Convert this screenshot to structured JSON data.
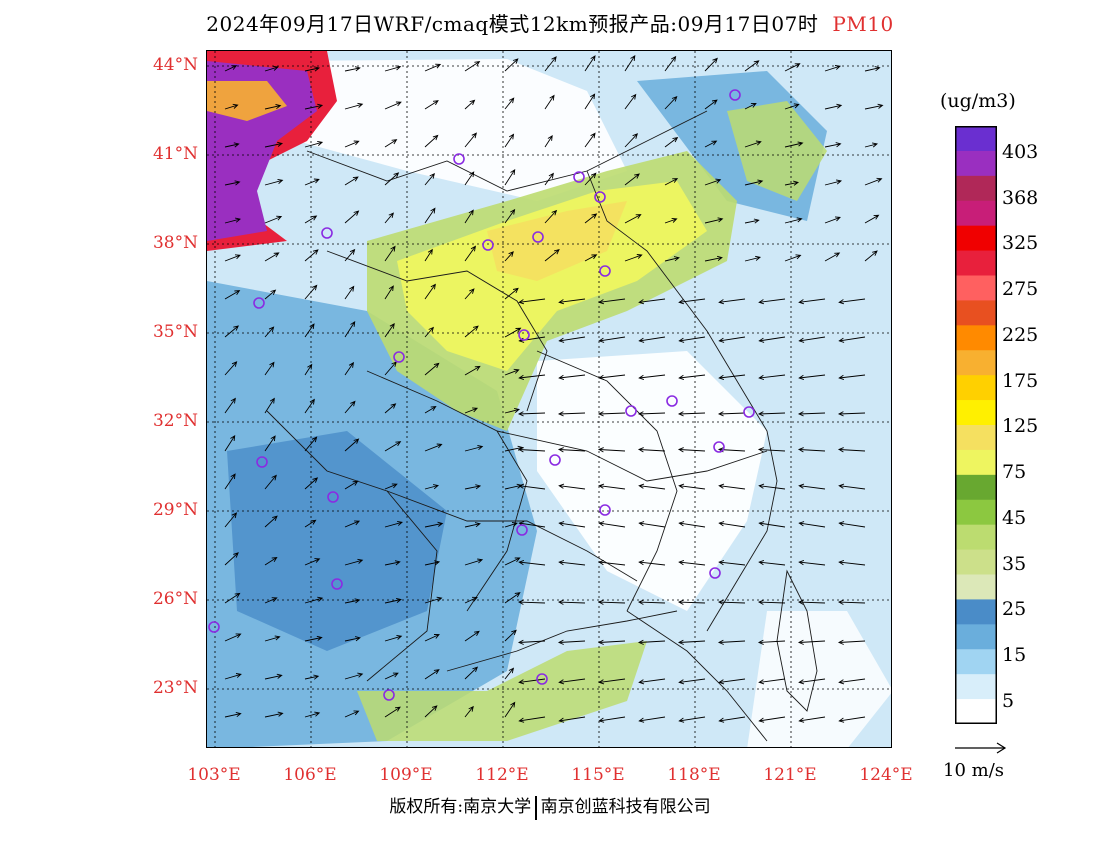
{
  "title": {
    "main": "2024年09月17日WRF/cmaq模式12km预报产品:09月17日07时",
    "pollutant": "PM10"
  },
  "axes": {
    "lat_labels": [
      "44°N",
      "41°N",
      "38°N",
      "35°N",
      "32°N",
      "29°N",
      "26°N",
      "23°N"
    ],
    "lon_labels": [
      "103°E",
      "106°E",
      "109°E",
      "112°E",
      "115°E",
      "118°E",
      "121°E",
      "124°E"
    ]
  },
  "colorbar": {
    "unit": "(ug/m3)",
    "labels": [
      "403",
      "368",
      "325",
      "275",
      "225",
      "175",
      "125",
      "75",
      "45",
      "35",
      "25",
      "15",
      "5"
    ],
    "colors": [
      "#6a2fd0",
      "#9a2fc0",
      "#b02858",
      "#c81e78",
      "#f00000",
      "#e8203c",
      "#ff6060",
      "#e85020",
      "#ff8a00",
      "#f8b030",
      "#ffd000",
      "#fff000",
      "#f5e060",
      "#eef560",
      "#68a830",
      "#8cc840",
      "#bcdc70",
      "#cce08a",
      "#dce8b8",
      "#4a8cc8",
      "#6aaedc",
      "#a0d4f2",
      "#d8eefa",
      "#ffffff"
    ],
    "wind_reference": "10 m/s"
  },
  "footer": {
    "left": "版权所有:南京大学",
    "right": "南京创蓝科技有限公司"
  }
}
